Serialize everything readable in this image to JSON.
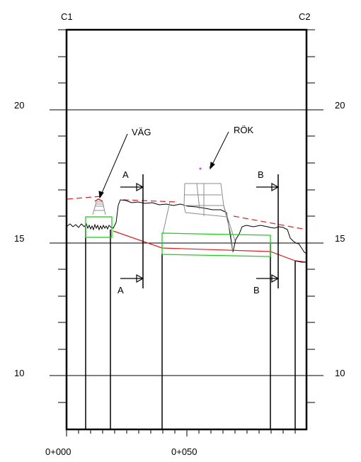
{
  "labels": {
    "c1": "C1",
    "c2": "C2",
    "road": "VÄG",
    "ditch": "RÖK",
    "section_a_top": "A",
    "section_a_bottom": "A",
    "section_b_top": "B",
    "section_b_bottom": "B"
  },
  "axis": {
    "y_left": [
      "20",
      "15",
      "10"
    ],
    "y_right": [
      "20",
      "15",
      "10"
    ],
    "x": [
      "0+000",
      "0+050"
    ]
  },
  "colors": {
    "frame": "#000000",
    "terrain": "#000000",
    "design_line": "#e0201c",
    "box": "#19d219",
    "structure": "#8c8c8c",
    "marker": "#e040e0"
  }
}
